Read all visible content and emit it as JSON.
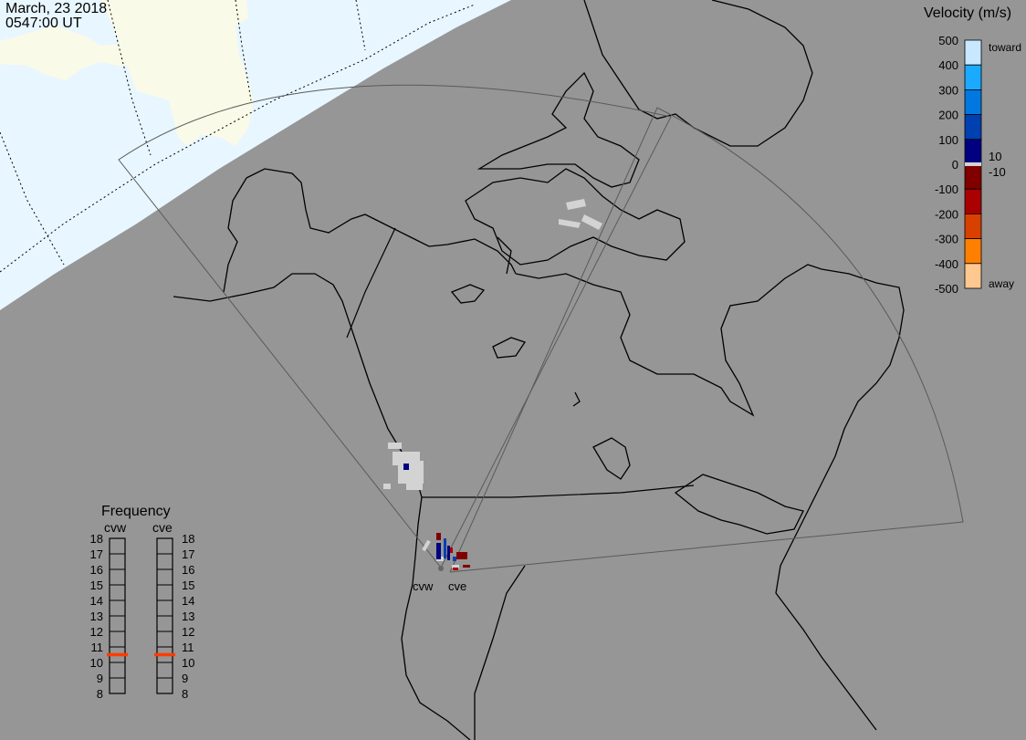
{
  "header": {
    "date": "March, 23 2018",
    "time": "0547:00 UT"
  },
  "colors": {
    "night": "#969696",
    "day_ocean": "#e8f6ff",
    "day_land": "#fafae8",
    "coast": "#000000",
    "fov": "#555555",
    "ground_scatter": "#d3d3d3",
    "freq_marker": "#ff3c00"
  },
  "velocity_scale": {
    "title": "Velocity (m/s)",
    "ticks": [
      "500",
      "400",
      "300",
      "200",
      "100",
      "0",
      "-100",
      "-200",
      "-300",
      "-400",
      "-500"
    ],
    "toward_label": "toward",
    "away_label": "away",
    "threshold_pos": "10",
    "threshold_neg": "-10",
    "bands": [
      "#c8e8ff",
      "#1aaaff",
      "#0078e0",
      "#0040b0",
      "#000080",
      "#800000",
      "#aa0000",
      "#d84000",
      "#ff8000",
      "#ffc890"
    ]
  },
  "frequency": {
    "title": "Frequency",
    "radars": [
      {
        "name": "cvw",
        "value_mhz": 10.5
      },
      {
        "name": "cve",
        "value_mhz": 10.5
      }
    ],
    "ticks": [
      "18",
      "17",
      "16",
      "15",
      "14",
      "13",
      "12",
      "11",
      "10",
      "9",
      "8"
    ]
  },
  "sites": [
    {
      "name": "cvw"
    },
    {
      "name": "cve"
    }
  ]
}
